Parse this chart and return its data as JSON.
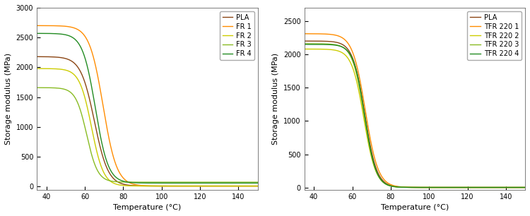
{
  "left_plot": {
    "xlabel": "Temperature (°C)",
    "ylabel": "Storage modulus (MPa)",
    "xlim": [
      35,
      150
    ],
    "ylim": [
      -50,
      3000
    ],
    "yticks": [
      0,
      500,
      1000,
      1500,
      2000,
      2500,
      3000
    ],
    "xticks": [
      40,
      60,
      80,
      100,
      120,
      140
    ],
    "series": [
      {
        "label": "PLA",
        "color": "#8B4513",
        "E0": 2180,
        "Einf": 10,
        "T_mid": 65.0,
        "k": 0.28
      },
      {
        "label": "FR 1",
        "color": "#FF8C00",
        "E0": 2700,
        "Einf": 10,
        "T_mid": 69.5,
        "k": 0.28
      },
      {
        "label": "FR 2",
        "color": "#CCCC00",
        "E0": 1980,
        "Einf": 10,
        "T_mid": 63.5,
        "k": 0.32
      },
      {
        "label": "FR 3",
        "color": "#88BB22",
        "E0": 1660,
        "Einf": 75,
        "T_mid": 61.0,
        "k": 0.35
      },
      {
        "label": "FR 4",
        "color": "#228B22",
        "E0": 2570,
        "Einf": 60,
        "T_mid": 65.5,
        "k": 0.3
      }
    ]
  },
  "right_plot": {
    "xlabel": "Temperature (°C)",
    "ylabel": "Storage modulus (MPa)",
    "xlim": [
      35,
      150
    ],
    "ylim": [
      -30,
      2700
    ],
    "yticks": [
      0,
      500,
      1000,
      1500,
      2000,
      2500
    ],
    "xticks": [
      40,
      60,
      80,
      100,
      120,
      140
    ],
    "series": [
      {
        "label": "PLA",
        "color": "#8B4513",
        "E0": 2200,
        "Einf": 3,
        "T_mid": 66.5,
        "k": 0.32
      },
      {
        "label": "TFR 220 1",
        "color": "#FF8C00",
        "E0": 2310,
        "Einf": 3,
        "T_mid": 66.8,
        "k": 0.3
      },
      {
        "label": "TFR 220 2",
        "color": "#CCCC00",
        "E0": 2080,
        "Einf": 3,
        "T_mid": 66.0,
        "k": 0.32
      },
      {
        "label": "TFR 220 3",
        "color": "#88BB22",
        "E0": 2160,
        "Einf": 3,
        "T_mid": 66.2,
        "k": 0.33
      },
      {
        "label": "TFR 220 4",
        "color": "#228B22",
        "E0": 2150,
        "Einf": 3,
        "T_mid": 66.5,
        "k": 0.34
      }
    ]
  },
  "background_color": "#ffffff",
  "legend_fontsize": 7,
  "tick_fontsize": 7,
  "label_fontsize": 8
}
